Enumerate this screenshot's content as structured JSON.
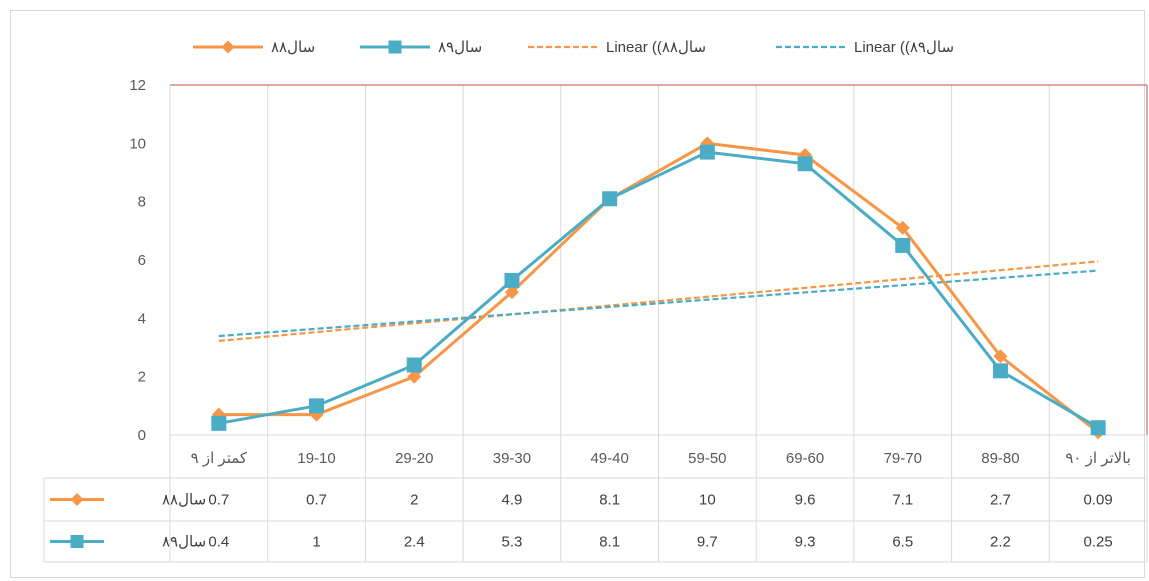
{
  "chart_data": {
    "type": "line",
    "categories": [
      "کمتر از ۹",
      "19-10",
      "29-20",
      "39-30",
      "49-40",
      "59-50",
      "69-60",
      "79-70",
      "89-80",
      "بالاتر از ۹۰"
    ],
    "series": [
      {
        "name": "سال۸۸",
        "values": [
          0.7,
          0.7,
          2,
          4.9,
          8.1,
          10,
          9.6,
          7.1,
          2.7,
          0.09
        ],
        "color": "#f79646",
        "marker": "diamond",
        "table_labels": [
          "0.7",
          "0.7",
          "2",
          "4.9",
          "8.1",
          "10",
          "9.6",
          "7.1",
          "2.7",
          "0.09"
        ]
      },
      {
        "name": "سال۸۹",
        "values": [
          0.4,
          1,
          2.4,
          5.3,
          8.1,
          9.7,
          9.3,
          6.5,
          2.2,
          0.25
        ],
        "color": "#4bacc6",
        "marker": "square",
        "table_labels": [
          "0.4",
          "1",
          "2.4",
          "5.3",
          "8.1",
          "9.7",
          "9.3",
          "6.5",
          "2.2",
          "0.25"
        ]
      }
    ],
    "trendlines": [
      {
        "name": "Linear ((سال۸۸",
        "type": "linear",
        "of_series": 0,
        "color": "#f79646"
      },
      {
        "name": "Linear ((سال۸۹",
        "type": "linear",
        "of_series": 1,
        "color": "#4bacc6"
      }
    ],
    "ylim": [
      0,
      12
    ],
    "yticks": [
      0,
      2,
      4,
      6,
      8,
      10,
      12
    ],
    "grid": "vertical",
    "legend": "top",
    "data_table": true,
    "title": "",
    "xlabel": "",
    "ylabel": ""
  }
}
